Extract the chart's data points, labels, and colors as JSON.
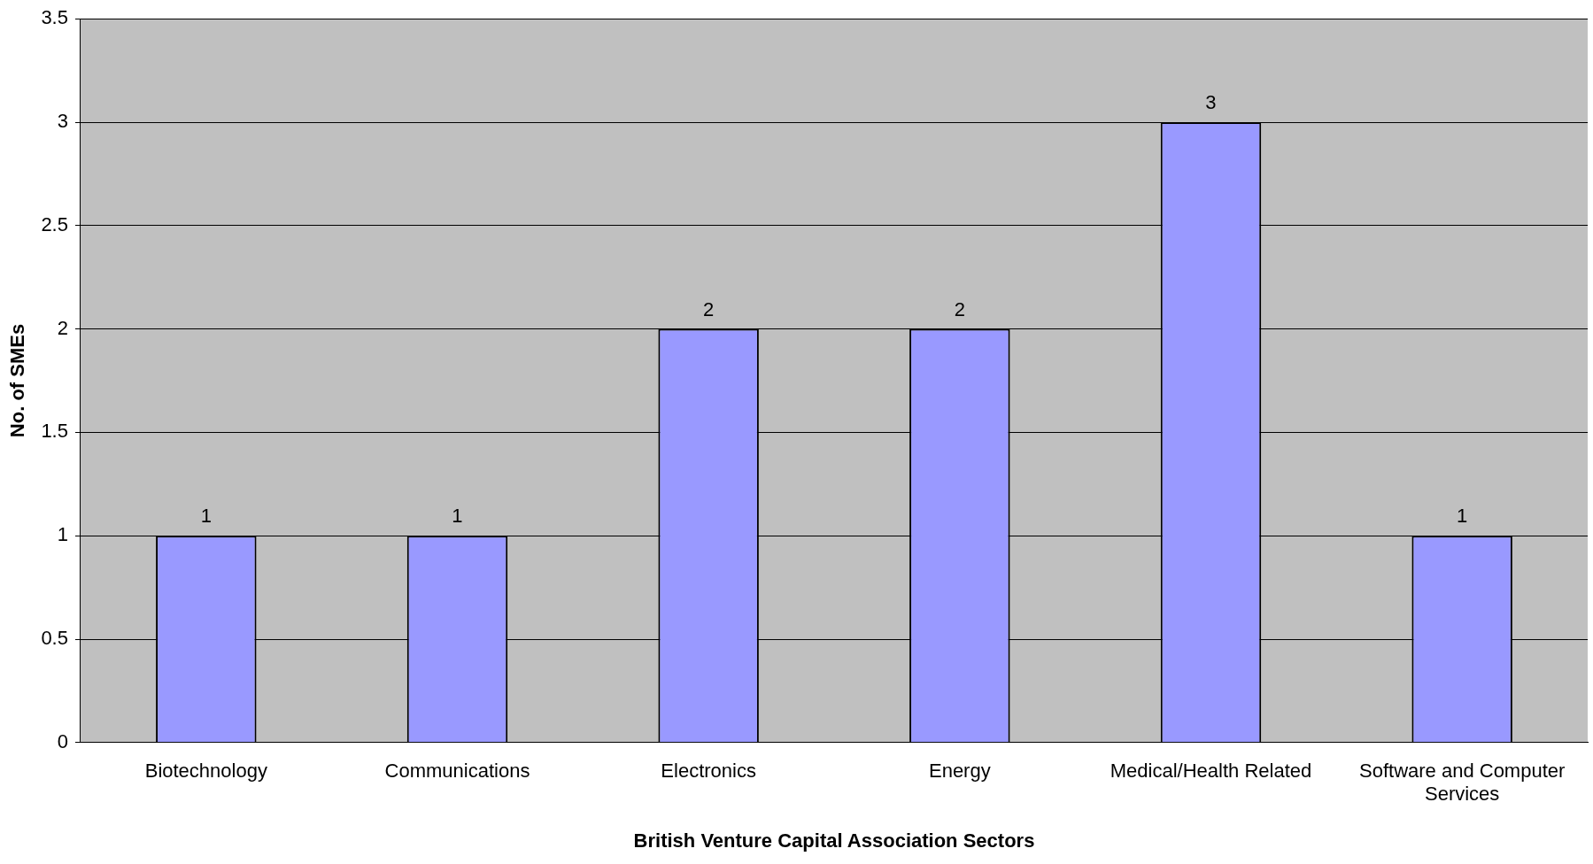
{
  "chart_data": {
    "type": "bar",
    "xlabel": "British Venture Capital Association Sectors",
    "ylabel": "No. of SMEs",
    "categories": [
      "Biotechnology",
      "Communications",
      "Electronics",
      "Energy",
      "Medical/Health Related",
      "Software and Computer Services"
    ],
    "values": [
      1,
      1,
      2,
      2,
      3,
      1
    ],
    "color": "#9999ff",
    "ylim": [
      0,
      3.5
    ],
    "yticks": [
      0,
      0.5,
      1,
      1.5,
      2,
      2.5,
      3,
      3.5
    ],
    "grid": "y",
    "legend": false,
    "data_labels": true
  }
}
